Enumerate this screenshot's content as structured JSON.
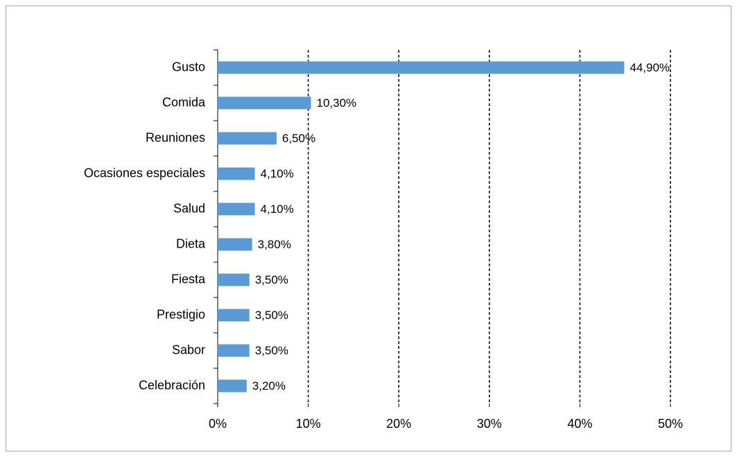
{
  "chart_data": {
    "type": "bar",
    "orientation": "horizontal",
    "categories": [
      "Gusto",
      "Comida",
      "Reuniones",
      "Ocasiones especiales",
      "Salud",
      "Dieta",
      "Fiesta",
      "Prestigio",
      "Sabor",
      "Celebración"
    ],
    "values": [
      44.9,
      10.3,
      6.5,
      4.1,
      4.1,
      3.8,
      3.5,
      3.5,
      3.5,
      3.2
    ],
    "value_labels": [
      "44,90%",
      "10,30%",
      "6,50%",
      "4,10%",
      "4,10%",
      "3,80%",
      "3,50%",
      "3,50%",
      "3,50%",
      "3,20%"
    ],
    "color": "#5b9bd5",
    "xlim": [
      0,
      50
    ],
    "xticks": [
      {
        "value": 0,
        "label": "0%"
      },
      {
        "value": 10,
        "label": "10%"
      },
      {
        "value": 20,
        "label": "20%"
      },
      {
        "value": 30,
        "label": "30%"
      },
      {
        "value": 40,
        "label": "40%"
      },
      {
        "value": 50,
        "label": "50%"
      }
    ],
    "grid": true
  }
}
